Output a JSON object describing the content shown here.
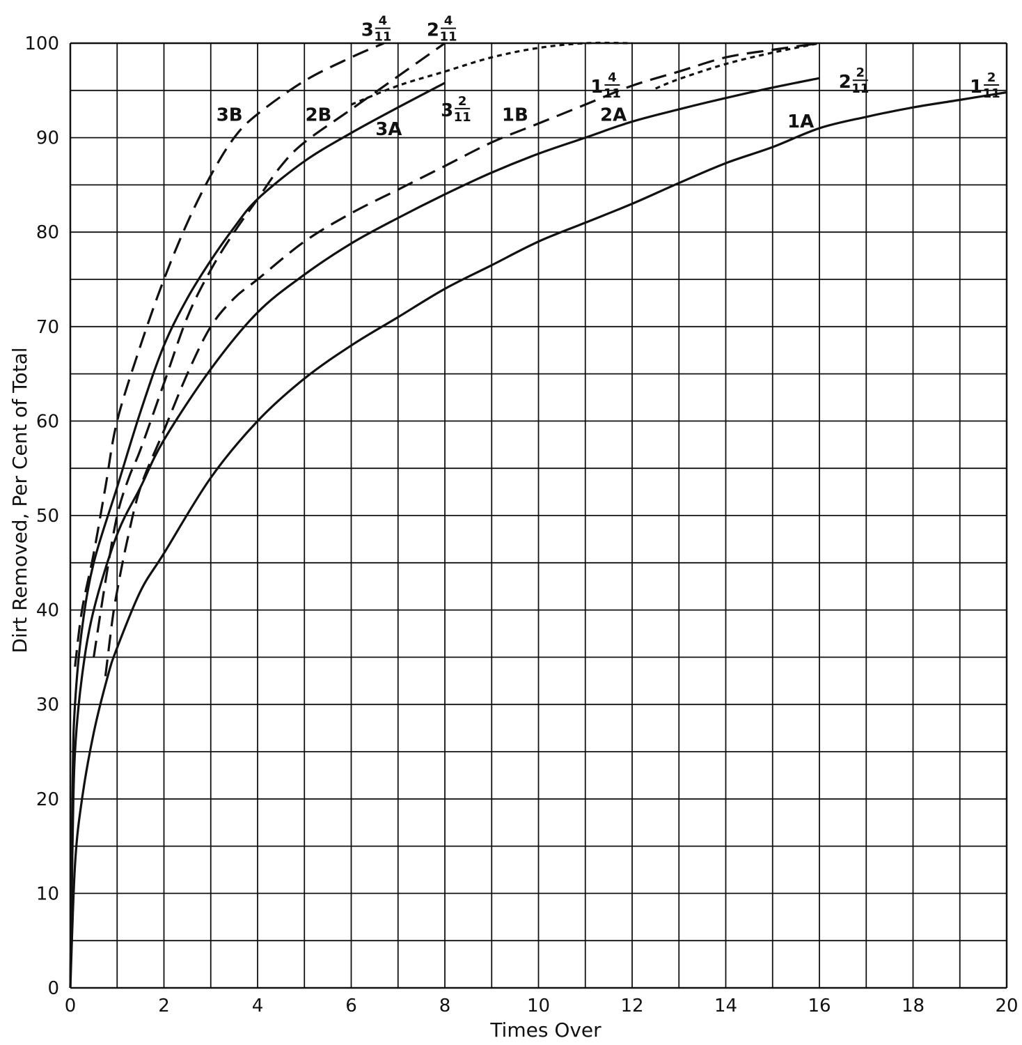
{
  "chart_data": {
    "type": "line",
    "title": "",
    "xlabel": "Times Over",
    "ylabel": "Dirt Removed, Per Cent of Total",
    "xlim": [
      0,
      20
    ],
    "ylim": [
      0,
      100
    ],
    "x_ticks": [
      "0",
      "2",
      "4",
      "6",
      "8",
      "10",
      "12",
      "14",
      "16",
      "18",
      "20"
    ],
    "y_ticks": [
      "0",
      "10",
      "20",
      "30",
      "40",
      "50",
      "60",
      "70",
      "80",
      "90",
      "100"
    ],
    "grid": true,
    "series": [
      {
        "name": "1A",
        "dash": false,
        "x": [
          0,
          0.1,
          0.25,
          0.5,
          0.8,
          1,
          1.5,
          2,
          3,
          4,
          5,
          6,
          7,
          8,
          9,
          10,
          11,
          12,
          13,
          14,
          15,
          16,
          17,
          18,
          19,
          20
        ],
        "y": [
          0,
          13,
          20,
          27,
          33,
          36,
          42,
          46,
          54,
          60,
          64.5,
          68,
          71,
          74,
          76.5,
          79,
          81,
          83,
          85.2,
          87.3,
          89,
          91,
          92.2,
          93.2,
          94,
          94.8
        ]
      },
      {
        "name": "2A",
        "dash": false,
        "x": [
          0,
          0.05,
          0.1,
          0.25,
          0.5,
          1,
          1.5,
          2,
          3,
          4,
          5,
          6,
          7,
          8,
          9,
          10,
          11,
          12,
          13,
          14,
          15,
          16
        ],
        "y": [
          0,
          16,
          25,
          33,
          40,
          48,
          53,
          58,
          65.5,
          71.5,
          75.5,
          78.8,
          81.5,
          84,
          86.3,
          88.3,
          90,
          91.7,
          93,
          94.2,
          95.3,
          96.3
        ]
      },
      {
        "name": "3A",
        "dash": false,
        "x": [
          0,
          0.05,
          0.1,
          0.25,
          0.5,
          1,
          1.5,
          2,
          2.5,
          3,
          3.5,
          4,
          5,
          6,
          7,
          8
        ],
        "y": [
          0,
          22,
          30,
          38,
          45,
          53,
          61,
          68,
          73,
          77,
          80.5,
          83.5,
          87.5,
          90.5,
          93.2,
          95.8
        ]
      },
      {
        "name": "1B",
        "dash": true,
        "x": [
          0.75,
          0.9,
          1,
          1.2,
          1.5,
          2,
          2.5,
          3,
          3.5,
          4,
          5,
          6,
          7,
          8,
          9,
          10,
          11,
          12,
          13,
          14,
          15,
          16
        ],
        "y": [
          33,
          39,
          42,
          47,
          53,
          59,
          65,
          70,
          73,
          75,
          79,
          82,
          84.5,
          87,
          89.5,
          91.5,
          93.5,
          95.5,
          97,
          98.5,
          99.3,
          100
        ]
      },
      {
        "name": "2B",
        "dash": true,
        "x": [
          0.5,
          0.75,
          1,
          1.25,
          1.5,
          2,
          2.5,
          3,
          3.5,
          4,
          4.5,
          5,
          6,
          7,
          8
        ],
        "y": [
          35,
          43,
          50,
          54,
          57,
          64,
          71,
          76,
          80,
          83.5,
          87,
          89.5,
          93,
          96.5,
          100
        ]
      },
      {
        "name": "3B",
        "dash": true,
        "x": [
          0.1,
          0.25,
          0.5,
          0.75,
          1,
          1.5,
          2,
          2.5,
          3,
          3.5,
          4,
          5,
          6,
          6.7
        ],
        "y": [
          34,
          40,
          46,
          53,
          60,
          68,
          75,
          81,
          86,
          90,
          92.5,
          96,
          98.5,
          100
        ]
      },
      {
        "name": "1 4/11",
        "dash": true,
        "short_dash": true,
        "x": [
          6,
          7,
          8,
          9,
          10,
          11,
          12
        ],
        "y": [
          93.5,
          95.5,
          97,
          98.5,
          99.5,
          100,
          100
        ]
      },
      {
        "name": "1 2/11",
        "dash": true,
        "short_dash": true,
        "x": [
          12.5,
          13,
          14,
          15,
          16
        ],
        "y": [
          95.2,
          96.2,
          97.8,
          99,
          100
        ]
      }
    ],
    "annotations": [
      {
        "text": "3B",
        "x": 3.4,
        "y": 92.5
      },
      {
        "text": "2B",
        "x": 5.3,
        "y": 92.5
      },
      {
        "text": "3A",
        "x": 6.8,
        "y": 91.0
      },
      {
        "text": "1B",
        "x": 9.5,
        "y": 92.5
      },
      {
        "text": "2A",
        "x": 11.6,
        "y": 92.5
      },
      {
        "text": "1A",
        "x": 15.6,
        "y": 91.8
      }
    ],
    "fraction_labels": [
      {
        "whole": "3",
        "num": "4",
        "den": "11",
        "x": 6.6,
        "y": 101.5
      },
      {
        "whole": "2",
        "num": "4",
        "den": "11",
        "x": 8.0,
        "y": 101.5
      },
      {
        "whole": "3",
        "num": "2",
        "den": "11",
        "x": 8.3,
        "y": 93.0
      },
      {
        "whole": "1",
        "num": "4",
        "den": "11",
        "x": 11.5,
        "y": 95.5
      },
      {
        "whole": "2",
        "num": "2",
        "den": "11",
        "x": 16.8,
        "y": 96.0
      },
      {
        "whole": "1",
        "num": "2",
        "den": "11",
        "x": 19.6,
        "y": 95.5
      }
    ]
  }
}
